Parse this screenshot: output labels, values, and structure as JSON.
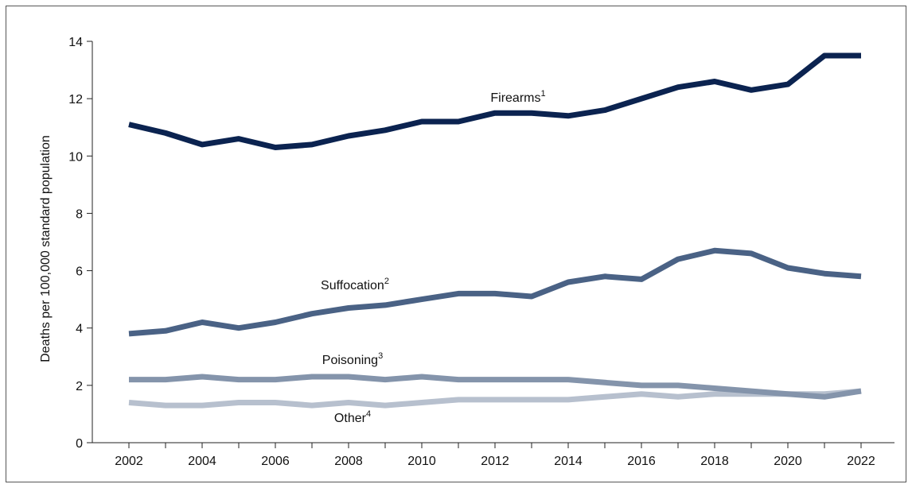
{
  "chart_data": {
    "type": "line",
    "title": "",
    "xlabel": "",
    "ylabel": "Deaths per 100,000 standard population",
    "ylim": [
      0,
      14
    ],
    "yticks": [
      "0",
      "2",
      "4",
      "6",
      "8",
      "10",
      "12",
      "14"
    ],
    "xtick_labels": [
      "2002",
      "2004",
      "2006",
      "2008",
      "2010",
      "2012",
      "2014",
      "2016",
      "2018",
      "2020",
      "2022"
    ],
    "x": [
      2002,
      2003,
      2004,
      2005,
      2006,
      2007,
      2008,
      2009,
      2010,
      2011,
      2012,
      2013,
      2014,
      2015,
      2016,
      2017,
      2018,
      2019,
      2020,
      2021,
      2022
    ],
    "grid": false,
    "series": [
      {
        "name": "Firearms",
        "footnote": "1",
        "color": "#0b2350",
        "values": [
          11.1,
          10.8,
          10.4,
          10.6,
          10.3,
          10.4,
          10.7,
          10.9,
          11.2,
          11.2,
          11.5,
          11.5,
          11.4,
          11.6,
          12.0,
          12.4,
          12.6,
          12.3,
          12.5,
          13.5,
          13.5
        ]
      },
      {
        "name": "Suffocation",
        "footnote": "2",
        "color": "#4a6285",
        "values": [
          3.8,
          3.9,
          4.2,
          4.0,
          4.2,
          4.5,
          4.7,
          4.8,
          5.0,
          5.2,
          5.2,
          5.1,
          5.6,
          5.8,
          5.7,
          6.4,
          6.7,
          6.6,
          6.1,
          5.9,
          5.8
        ]
      },
      {
        "name": "Poisoning",
        "footnote": "3",
        "color": "#8494ab",
        "values": [
          2.2,
          2.2,
          2.3,
          2.2,
          2.2,
          2.3,
          2.3,
          2.2,
          2.3,
          2.2,
          2.2,
          2.2,
          2.2,
          2.1,
          2.0,
          2.0,
          1.9,
          1.8,
          1.7,
          1.6,
          1.8
        ]
      },
      {
        "name": "Other",
        "footnote": "4",
        "color": "#b7c0ce",
        "values": [
          1.4,
          1.3,
          1.3,
          1.4,
          1.4,
          1.3,
          1.4,
          1.3,
          1.4,
          1.5,
          1.5,
          1.5,
          1.5,
          1.6,
          1.7,
          1.6,
          1.7,
          1.7,
          1.7,
          1.7,
          1.8
        ]
      }
    ]
  }
}
